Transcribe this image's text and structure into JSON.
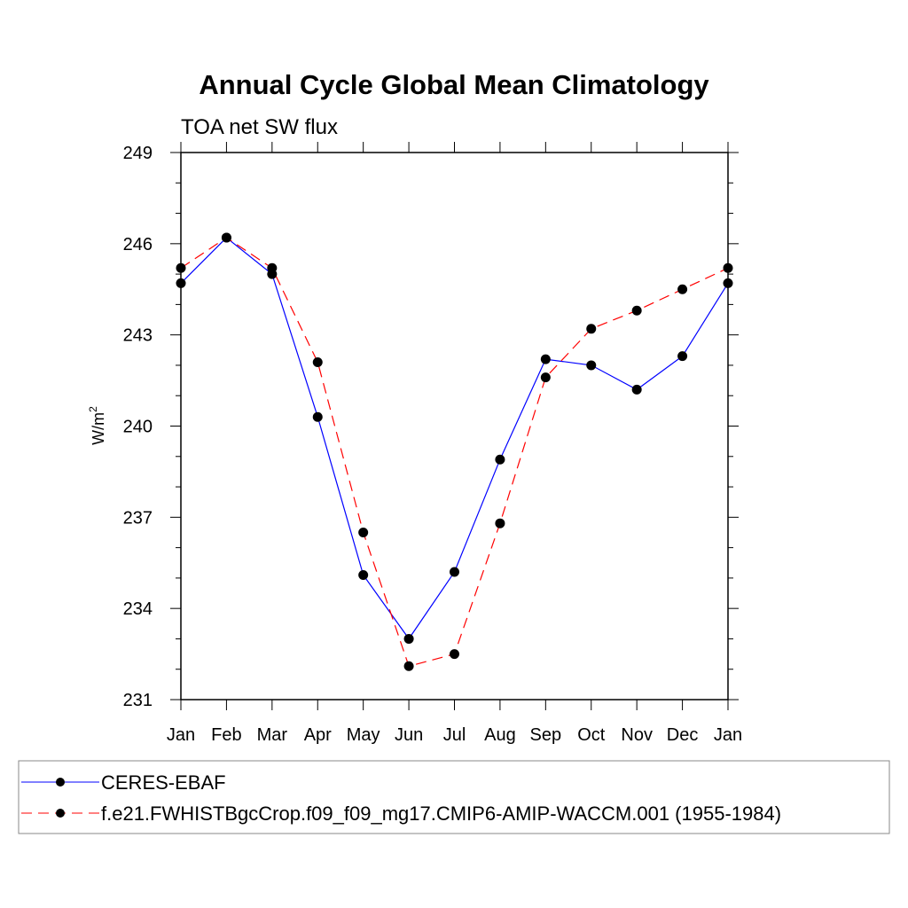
{
  "chart_data": {
    "type": "line",
    "title": "Annual Cycle Global Mean Climatology",
    "subtitle": "TOA net SW flux",
    "ylabel": "W/m",
    "ylabel_sup": "2",
    "xlabel": "",
    "categories": [
      "Jan",
      "Feb",
      "Mar",
      "Apr",
      "May",
      "Jun",
      "Jul",
      "Aug",
      "Sep",
      "Oct",
      "Nov",
      "Dec",
      "Jan"
    ],
    "ylim": [
      231,
      249
    ],
    "yticks": [
      231,
      234,
      237,
      240,
      243,
      246,
      249
    ],
    "ytick_labels": [
      "231",
      "234",
      "237",
      "240",
      "243",
      "246",
      "249"
    ],
    "grid": false,
    "legend_position": "bottom",
    "series": [
      {
        "name": "CERES-EBAF",
        "color": "#0000ff",
        "dash": "solid",
        "values": [
          244.7,
          246.2,
          245.0,
          240.3,
          235.1,
          233.0,
          235.2,
          238.9,
          242.2,
          242.0,
          241.2,
          242.3,
          244.7
        ]
      },
      {
        "name": "f.e21.FWHISTBgcCrop.f09_f09_mg17.CMIP6-AMIP-WACCM.001 (1955-1984)",
        "color": "#ff0000",
        "dash": "dashed",
        "values": [
          245.2,
          246.2,
          245.2,
          242.1,
          236.5,
          232.1,
          232.5,
          236.8,
          241.6,
          243.2,
          243.8,
          244.5,
          245.2
        ]
      }
    ]
  }
}
